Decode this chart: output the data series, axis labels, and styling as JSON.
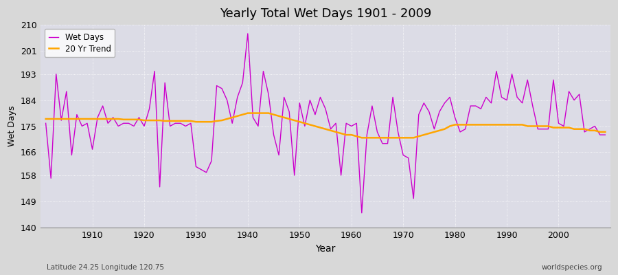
{
  "title": "Yearly Total Wet Days 1901 - 2009",
  "xlabel": "Year",
  "ylabel": "Wet Days",
  "footnote_left": "Latitude 24.25 Longitude 120.75",
  "footnote_right": "worldspecies.org",
  "legend_entries": [
    "Wet Days",
    "20 Yr Trend"
  ],
  "wet_days_color": "#cc00cc",
  "trend_color": "#ffa500",
  "fig_facecolor": "#d8d8d8",
  "plot_facecolor": "#dcdce6",
  "ylim": [
    140,
    210
  ],
  "yticks": [
    140,
    149,
    158,
    166,
    175,
    184,
    193,
    201,
    210
  ],
  "xlim": [
    1900,
    2010
  ],
  "xticks": [
    1910,
    1920,
    1930,
    1940,
    1950,
    1960,
    1970,
    1980,
    1990,
    2000
  ],
  "years": [
    1901,
    1902,
    1903,
    1904,
    1905,
    1906,
    1907,
    1908,
    1909,
    1910,
    1911,
    1912,
    1913,
    1914,
    1915,
    1916,
    1917,
    1918,
    1919,
    1920,
    1921,
    1922,
    1923,
    1924,
    1925,
    1926,
    1927,
    1928,
    1929,
    1930,
    1931,
    1932,
    1933,
    1934,
    1935,
    1936,
    1937,
    1938,
    1939,
    1940,
    1941,
    1942,
    1943,
    1944,
    1945,
    1946,
    1947,
    1948,
    1949,
    1950,
    1951,
    1952,
    1953,
    1954,
    1955,
    1956,
    1957,
    1958,
    1959,
    1960,
    1961,
    1962,
    1963,
    1964,
    1965,
    1966,
    1967,
    1968,
    1969,
    1970,
    1971,
    1972,
    1973,
    1974,
    1975,
    1976,
    1977,
    1978,
    1979,
    1980,
    1981,
    1982,
    1983,
    1984,
    1985,
    1986,
    1987,
    1988,
    1989,
    1990,
    1991,
    1992,
    1993,
    1994,
    1995,
    1996,
    1997,
    1998,
    1999,
    2000,
    2001,
    2002,
    2003,
    2004,
    2005,
    2006,
    2007,
    2008,
    2009
  ],
  "wet_days": [
    176,
    157,
    193,
    177,
    187,
    165,
    179,
    175,
    176,
    167,
    178,
    182,
    176,
    178,
    175,
    176,
    176,
    175,
    178,
    175,
    181,
    194,
    154,
    190,
    175,
    176,
    176,
    175,
    176,
    161,
    160,
    159,
    163,
    189,
    188,
    184,
    176,
    185,
    190,
    207,
    178,
    175,
    194,
    186,
    172,
    165,
    185,
    180,
    158,
    183,
    175,
    184,
    179,
    185,
    181,
    174,
    176,
    158,
    176,
    175,
    176,
    145,
    172,
    182,
    173,
    169,
    169,
    185,
    173,
    165,
    164,
    150,
    179,
    183,
    180,
    174,
    180,
    183,
    185,
    178,
    173,
    174,
    182,
    182,
    181,
    185,
    183,
    194,
    185,
    184,
    193,
    185,
    183,
    191,
    182,
    174,
    174,
    174,
    191,
    176,
    175,
    187,
    184,
    186,
    173,
    174,
    175,
    172,
    172
  ],
  "trend": [
    177.5,
    177.5,
    177.5,
    177.5,
    177.5,
    177.5,
    177.5,
    177.5,
    177.5,
    177.5,
    177.5,
    177.5,
    177.5,
    177.5,
    177.5,
    177.3,
    177.3,
    177.3,
    177.3,
    177.0,
    177.0,
    177.0,
    177.0,
    176.8,
    176.8,
    176.8,
    176.8,
    176.8,
    176.8,
    176.5,
    176.5,
    176.5,
    176.5,
    176.8,
    177.0,
    177.5,
    178.0,
    178.5,
    179.0,
    179.5,
    179.5,
    179.5,
    179.5,
    179.5,
    179.0,
    178.5,
    178.0,
    177.5,
    177.0,
    176.5,
    176.0,
    175.5,
    175.0,
    174.5,
    174.0,
    173.5,
    173.0,
    172.5,
    172.0,
    172.0,
    171.5,
    171.0,
    171.0,
    171.0,
    171.0,
    171.0,
    171.0,
    171.0,
    171.0,
    171.0,
    171.0,
    171.0,
    171.5,
    172.0,
    172.5,
    173.0,
    173.5,
    174.0,
    175.0,
    175.5,
    175.5,
    175.5,
    175.5,
    175.5,
    175.5,
    175.5,
    175.5,
    175.5,
    175.5,
    175.5,
    175.5,
    175.5,
    175.5,
    175.0,
    175.0,
    175.0,
    175.0,
    175.0,
    174.5,
    174.5,
    174.5,
    174.5,
    174.0,
    174.0,
    174.0,
    173.5,
    173.5,
    173.0,
    173.0
  ]
}
